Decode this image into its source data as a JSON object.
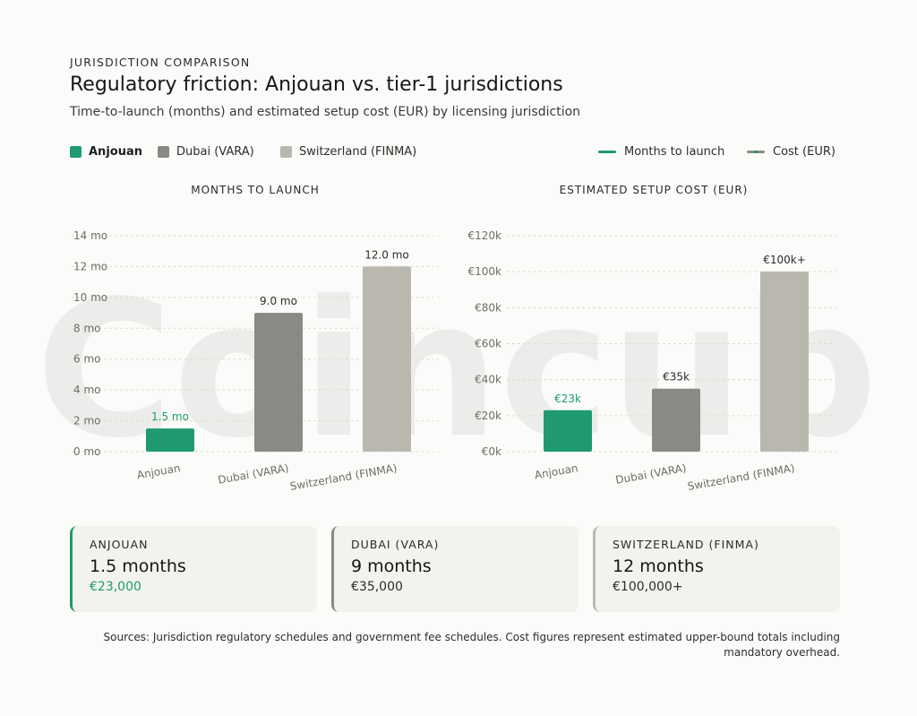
{
  "header": {
    "kicker": "JURISDICTION COMPARISON",
    "title": "Regulatory friction: Anjouan vs. tier-1 jurisdictions",
    "subtitle": "Time-to-launch (months) and estimated setup cost (EUR) by licensing jurisdiction"
  },
  "legend": {
    "jurisdictions": [
      {
        "label": "Anjouan",
        "color": "#1f9a6f"
      },
      {
        "label": "Dubai (VARA)",
        "color": "#8a8a84"
      },
      {
        "label": "Switzerland (FINMA)",
        "color": "#b9b7ae"
      }
    ],
    "metrics": [
      {
        "label": "Months to launch",
        "color": "#1f9a6f"
      },
      {
        "label": "Cost (EUR)",
        "color": "#8a8a84"
      }
    ]
  },
  "watermark": "Coincub",
  "chart_data": [
    {
      "type": "bar",
      "title": "MONTHS TO LAUNCH",
      "categories": [
        "Anjouan",
        "Dubai (VARA)",
        "Switzerland (FINMA)"
      ],
      "values": [
        1.5,
        9.0,
        12.0
      ],
      "data_labels": [
        "1.5 mo",
        "9.0 mo",
        "12.0 mo"
      ],
      "ylim": [
        0,
        14
      ],
      "yticks": [
        0,
        2,
        4,
        6,
        8,
        10,
        12,
        14
      ],
      "ytick_labels": [
        "0 mo",
        "2 mo",
        "4 mo",
        "6 mo",
        "8 mo",
        "10 mo",
        "12 mo",
        "14 mo"
      ],
      "colors": [
        "#1f9a6f",
        "#8a8a84",
        "#b9b7ae"
      ],
      "grid": true
    },
    {
      "type": "bar",
      "title": "ESTIMATED SETUP COST (EUR)",
      "categories": [
        "Anjouan",
        "Dubai (VARA)",
        "Switzerland (FINMA)"
      ],
      "values": [
        23000,
        35000,
        100000
      ],
      "data_labels": [
        "€23k",
        "€35k",
        "€100k+"
      ],
      "ylim": [
        0,
        120000
      ],
      "yticks": [
        0,
        20000,
        40000,
        60000,
        80000,
        100000,
        120000
      ],
      "ytick_labels": [
        "€0k",
        "€20k",
        "€40k",
        "€60k",
        "€80k",
        "€100k",
        "€120k"
      ],
      "colors": [
        "#1f9a6f",
        "#8a8a84",
        "#b9b7ae"
      ],
      "grid": true
    }
  ],
  "cards": [
    {
      "name": "ANJOUAN",
      "months": "1.5 months",
      "cost": "€23,000",
      "accent": "#1f9a6f"
    },
    {
      "name": "DUBAI (VARA)",
      "months": "9 months",
      "cost": "€35,000",
      "accent": "#8a8a84"
    },
    {
      "name": "SWITZERLAND (FINMA)",
      "months": "12 months",
      "cost": "€100,000+",
      "accent": "#b9b7ae"
    }
  ],
  "sources": "Sources: Jurisdiction regulatory schedules and government fee schedules. Cost figures represent estimated upper-bound totals including mandatory overhead."
}
